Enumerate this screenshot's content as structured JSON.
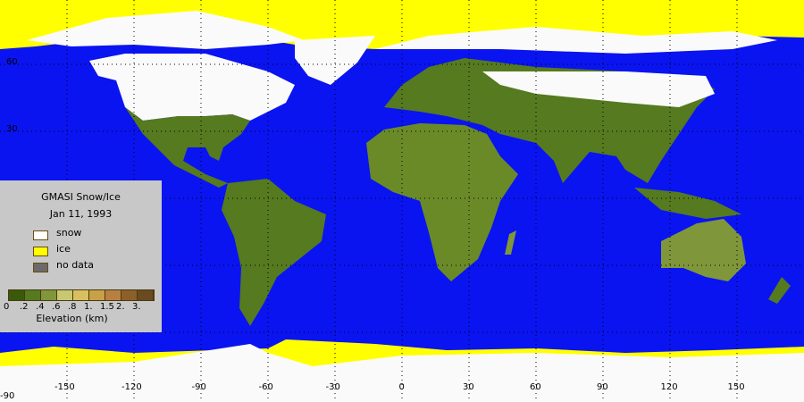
{
  "legend": {
    "title": "GMASI Snow/Ice",
    "date": "Jan 11, 1993",
    "items": [
      {
        "label": "snow",
        "color": "#ffffff"
      },
      {
        "label": "ice",
        "color": "#ffff00"
      },
      {
        "label": "no data",
        "color": "#6a6a6a"
      }
    ],
    "elevation_colors": [
      "#3a5a0a",
      "#557a20",
      "#80963a",
      "#c8c870",
      "#d8c060",
      "#c8a048",
      "#b88040",
      "#8c6028",
      "#6a4a20"
    ],
    "elevation_ticks": [
      "0",
      ".2",
      ".4",
      ".6",
      ".8",
      "1.",
      "1.5",
      "2.",
      "3."
    ],
    "elevation_label": "Elevation (km)"
  },
  "axes": {
    "lon_labels": [
      "-150",
      "-120",
      "-90",
      "-60",
      "-30",
      "0",
      "30",
      "60",
      "90",
      "120",
      "150"
    ],
    "lat_labels": [
      "60",
      "30",
      "-90"
    ]
  },
  "colors": {
    "ocean": "#0a14f0",
    "snow": "#fafafa",
    "ice": "#ffff00",
    "land": "#557a20"
  }
}
